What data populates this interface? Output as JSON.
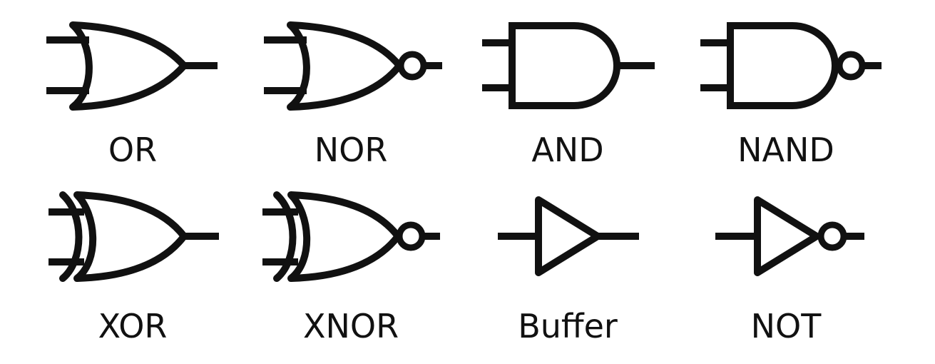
{
  "gates": [
    {
      "label": "OR"
    },
    {
      "label": "NOR"
    },
    {
      "label": "AND"
    },
    {
      "label": "NAND"
    },
    {
      "label": "XOR"
    },
    {
      "label": "XNOR"
    },
    {
      "label": "Buffer"
    },
    {
      "label": "NOT"
    }
  ],
  "colors": {
    "stroke": "#111111",
    "background": "#ffffff"
  }
}
